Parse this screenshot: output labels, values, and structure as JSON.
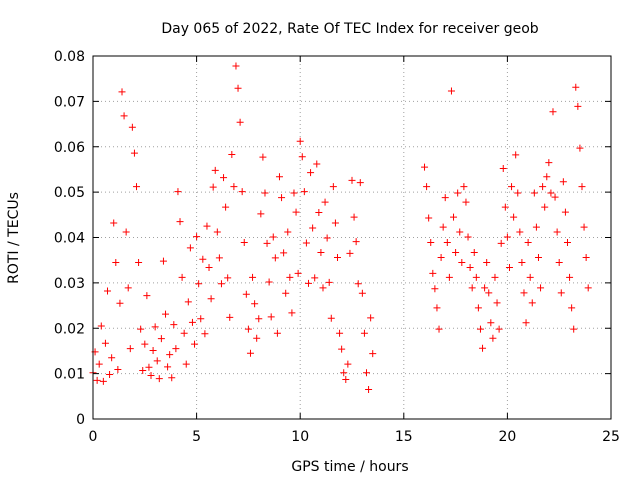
{
  "chart_data": {
    "type": "scatter",
    "title": "Day 065 of 2022, Rate Of TEC Index for receiver geob",
    "xlabel": "GPS time / hours",
    "ylabel": "ROTI / TECUs",
    "xlim": [
      0,
      25
    ],
    "ylim": [
      0,
      0.08
    ],
    "xticks": [
      0,
      5,
      10,
      15,
      20,
      25
    ],
    "yticks": [
      0,
      0.01,
      0.02,
      0.03,
      0.04,
      0.05,
      0.06,
      0.07,
      0.08
    ],
    "xtick_labels": [
      "0",
      "5",
      "10",
      "15",
      "20",
      "25"
    ],
    "ytick_labels": [
      "0",
      "0.01",
      "0.02",
      "0.03",
      "0.04",
      "0.05",
      "0.06",
      "0.07",
      "0.08"
    ],
    "grid": true,
    "marker": "plus",
    "color": "#ff0000",
    "series": [
      {
        "points": [
          [
            0.0,
            0.0102
          ],
          [
            0.1,
            0.0148
          ],
          [
            0.2,
            0.0085
          ],
          [
            0.3,
            0.0121
          ],
          [
            0.4,
            0.0205
          ],
          [
            0.5,
            0.0083
          ],
          [
            0.6,
            0.0167
          ],
          [
            0.7,
            0.0282
          ],
          [
            0.8,
            0.0098
          ],
          [
            0.9,
            0.0135
          ],
          [
            1.0,
            0.0432
          ],
          [
            1.1,
            0.0345
          ],
          [
            1.2,
            0.0109
          ],
          [
            1.3,
            0.0255
          ],
          [
            1.4,
            0.0721
          ],
          [
            1.5,
            0.0668
          ],
          [
            1.6,
            0.0412
          ],
          [
            1.7,
            0.0289
          ],
          [
            1.8,
            0.0155
          ],
          [
            1.9,
            0.0643
          ],
          [
            2.0,
            0.0586
          ],
          [
            2.1,
            0.0512
          ],
          [
            2.2,
            0.0345
          ],
          [
            2.3,
            0.0198
          ],
          [
            2.4,
            0.0107
          ],
          [
            2.5,
            0.0165
          ],
          [
            2.6,
            0.0272
          ],
          [
            2.7,
            0.0114
          ],
          [
            2.8,
            0.0096
          ],
          [
            2.9,
            0.0151
          ],
          [
            3.0,
            0.0203
          ],
          [
            3.1,
            0.0128
          ],
          [
            3.2,
            0.0089
          ],
          [
            3.3,
            0.0177
          ],
          [
            3.4,
            0.0348
          ],
          [
            3.5,
            0.0231
          ],
          [
            3.6,
            0.0115
          ],
          [
            3.7,
            0.0142
          ],
          [
            3.8,
            0.0091
          ],
          [
            3.9,
            0.0208
          ],
          [
            4.0,
            0.0155
          ],
          [
            4.1,
            0.0501
          ],
          [
            4.2,
            0.0435
          ],
          [
            4.3,
            0.0312
          ],
          [
            4.4,
            0.0189
          ],
          [
            4.5,
            0.0121
          ],
          [
            4.6,
            0.0258
          ],
          [
            4.7,
            0.0377
          ],
          [
            4.8,
            0.0213
          ],
          [
            4.9,
            0.0165
          ],
          [
            5.0,
            0.0402
          ],
          [
            5.1,
            0.0298
          ],
          [
            5.2,
            0.0221
          ],
          [
            5.3,
            0.0352
          ],
          [
            5.4,
            0.0188
          ],
          [
            5.5,
            0.0425
          ],
          [
            5.6,
            0.0334
          ],
          [
            5.7,
            0.0265
          ],
          [
            5.8,
            0.0511
          ],
          [
            5.9,
            0.0548
          ],
          [
            6.0,
            0.0412
          ],
          [
            6.1,
            0.0355
          ],
          [
            6.2,
            0.0298
          ],
          [
            6.3,
            0.0532
          ],
          [
            6.4,
            0.0467
          ],
          [
            6.5,
            0.0311
          ],
          [
            6.6,
            0.0224
          ],
          [
            6.7,
            0.0583
          ],
          [
            6.8,
            0.0512
          ],
          [
            6.9,
            0.0778
          ],
          [
            7.0,
            0.0729
          ],
          [
            7.1,
            0.0654
          ],
          [
            7.2,
            0.0501
          ],
          [
            7.3,
            0.0389
          ],
          [
            7.4,
            0.0275
          ],
          [
            7.5,
            0.0198
          ],
          [
            7.6,
            0.0145
          ],
          [
            7.7,
            0.0312
          ],
          [
            7.8,
            0.0254
          ],
          [
            7.9,
            0.0178
          ],
          [
            8.0,
            0.0221
          ],
          [
            8.1,
            0.0452
          ],
          [
            8.2,
            0.0577
          ],
          [
            8.3,
            0.0498
          ],
          [
            8.4,
            0.0387
          ],
          [
            8.5,
            0.0302
          ],
          [
            8.6,
            0.0225
          ],
          [
            8.7,
            0.0401
          ],
          [
            8.8,
            0.0355
          ],
          [
            8.9,
            0.0189
          ],
          [
            9.0,
            0.0534
          ],
          [
            9.1,
            0.0488
          ],
          [
            9.2,
            0.0366
          ],
          [
            9.3,
            0.0277
          ],
          [
            9.4,
            0.0412
          ],
          [
            9.5,
            0.0312
          ],
          [
            9.6,
            0.0234
          ],
          [
            9.7,
            0.0498
          ],
          [
            9.8,
            0.0456
          ],
          [
            9.9,
            0.0321
          ],
          [
            10.0,
            0.0612
          ],
          [
            10.1,
            0.0578
          ],
          [
            10.2,
            0.0501
          ],
          [
            10.3,
            0.0388
          ],
          [
            10.4,
            0.0299
          ],
          [
            10.5,
            0.0543
          ],
          [
            10.6,
            0.0421
          ],
          [
            10.7,
            0.0311
          ],
          [
            10.8,
            0.0562
          ],
          [
            10.9,
            0.0455
          ],
          [
            11.0,
            0.0367
          ],
          [
            11.1,
            0.0289
          ],
          [
            11.2,
            0.0478
          ],
          [
            11.3,
            0.0399
          ],
          [
            11.4,
            0.0301
          ],
          [
            11.5,
            0.0222
          ],
          [
            11.6,
            0.0512
          ],
          [
            11.7,
            0.0432
          ],
          [
            11.8,
            0.0356
          ],
          [
            11.9,
            0.0189
          ],
          [
            12.0,
            0.0154
          ],
          [
            12.1,
            0.0102
          ],
          [
            12.2,
            0.0087
          ],
          [
            12.3,
            0.0121
          ],
          [
            12.4,
            0.0365
          ],
          [
            12.5,
            0.0526
          ],
          [
            12.6,
            0.0445
          ],
          [
            12.7,
            0.0391
          ],
          [
            12.8,
            0.0298
          ],
          [
            12.9,
            0.0521
          ],
          [
            13.0,
            0.0277
          ],
          [
            13.1,
            0.0189
          ],
          [
            13.2,
            0.0102
          ],
          [
            13.3,
            0.0065
          ],
          [
            13.4,
            0.0223
          ],
          [
            13.5,
            0.0144
          ],
          [
            16.0,
            0.0555
          ],
          [
            16.1,
            0.0512
          ],
          [
            16.2,
            0.0443
          ],
          [
            16.3,
            0.0389
          ],
          [
            16.4,
            0.0321
          ],
          [
            16.5,
            0.0287
          ],
          [
            16.6,
            0.0245
          ],
          [
            16.7,
            0.0198
          ],
          [
            16.8,
            0.0356
          ],
          [
            16.9,
            0.0423
          ],
          [
            17.0,
            0.0488
          ],
          [
            17.1,
            0.0389
          ],
          [
            17.2,
            0.0312
          ],
          [
            17.3,
            0.0723
          ],
          [
            17.4,
            0.0445
          ],
          [
            17.5,
            0.0367
          ],
          [
            17.6,
            0.0498
          ],
          [
            17.7,
            0.0412
          ],
          [
            17.8,
            0.0345
          ],
          [
            17.9,
            0.0512
          ],
          [
            18.0,
            0.0478
          ],
          [
            18.1,
            0.0401
          ],
          [
            18.2,
            0.0334
          ],
          [
            18.3,
            0.0289
          ],
          [
            18.4,
            0.0367
          ],
          [
            18.5,
            0.0312
          ],
          [
            18.6,
            0.0245
          ],
          [
            18.7,
            0.0198
          ],
          [
            18.8,
            0.0156
          ],
          [
            18.9,
            0.0289
          ],
          [
            19.0,
            0.0345
          ],
          [
            19.1,
            0.0278
          ],
          [
            19.2,
            0.0212
          ],
          [
            19.3,
            0.0178
          ],
          [
            19.4,
            0.0312
          ],
          [
            19.5,
            0.0256
          ],
          [
            19.6,
            0.0198
          ],
          [
            19.7,
            0.0387
          ],
          [
            19.8,
            0.0552
          ],
          [
            19.9,
            0.0467
          ],
          [
            20.0,
            0.0401
          ],
          [
            20.1,
            0.0334
          ],
          [
            20.2,
            0.0512
          ],
          [
            20.3,
            0.0445
          ],
          [
            20.4,
            0.0582
          ],
          [
            20.5,
            0.0498
          ],
          [
            20.6,
            0.0412
          ],
          [
            20.7,
            0.0345
          ],
          [
            20.8,
            0.0278
          ],
          [
            20.9,
            0.0212
          ],
          [
            21.0,
            0.0389
          ],
          [
            21.1,
            0.0312
          ],
          [
            21.2,
            0.0256
          ],
          [
            21.3,
            0.0498
          ],
          [
            21.4,
            0.0423
          ],
          [
            21.5,
            0.0356
          ],
          [
            21.6,
            0.0289
          ],
          [
            21.7,
            0.0512
          ],
          [
            21.8,
            0.0467
          ],
          [
            21.9,
            0.0534
          ],
          [
            22.0,
            0.0565
          ],
          [
            22.1,
            0.0498
          ],
          [
            22.2,
            0.0677
          ],
          [
            22.3,
            0.0489
          ],
          [
            22.4,
            0.0412
          ],
          [
            22.5,
            0.0345
          ],
          [
            22.6,
            0.0278
          ],
          [
            22.7,
            0.0523
          ],
          [
            22.8,
            0.0456
          ],
          [
            22.9,
            0.0389
          ],
          [
            23.0,
            0.0312
          ],
          [
            23.1,
            0.0245
          ],
          [
            23.2,
            0.0198
          ],
          [
            23.3,
            0.0731
          ],
          [
            23.4,
            0.0689
          ],
          [
            23.5,
            0.0597
          ],
          [
            23.6,
            0.0512
          ],
          [
            23.7,
            0.0423
          ],
          [
            23.8,
            0.0356
          ],
          [
            23.9,
            0.0289
          ]
        ]
      }
    ]
  }
}
